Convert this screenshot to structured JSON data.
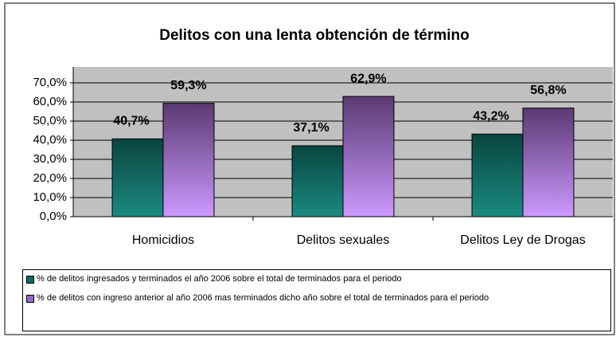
{
  "chart_data": {
    "type": "bar",
    "title": "Delitos con una lenta obtención de término",
    "categories": [
      "Homicidios",
      "Delitos sexuales",
      "Delitos Ley de Drogas"
    ],
    "series": [
      {
        "name": "% de delitos ingresados y terminados el año 2006 sobre el total de terminados para el periodo",
        "color": "#0f6b62",
        "values": [
          40.7,
          37.1,
          43.2
        ],
        "value_labels": [
          "40,7%",
          "37,1%",
          "43,2%"
        ]
      },
      {
        "name": "% de delitos con ingreso anterior al año 2006 mas terminados dicho año sobre el total de terminados para el periodo",
        "color": "#9966cc",
        "values": [
          59.3,
          62.9,
          56.8
        ],
        "value_labels": [
          "59,3%",
          "62,9%",
          "56,8%"
        ]
      }
    ],
    "ylim": [
      0,
      70
    ],
    "yticks": [
      {
        "value": 0,
        "label": "0,0%"
      },
      {
        "value": 10,
        "label": "10,0%"
      },
      {
        "value": 20,
        "label": "20,0%"
      },
      {
        "value": 30,
        "label": "30,0%"
      },
      {
        "value": 40,
        "label": "40,0%"
      },
      {
        "value": 50,
        "label": "50,0%"
      },
      {
        "value": 60,
        "label": "60,0%"
      },
      {
        "value": 70,
        "label": "70,0%"
      }
    ],
    "grid": true
  }
}
